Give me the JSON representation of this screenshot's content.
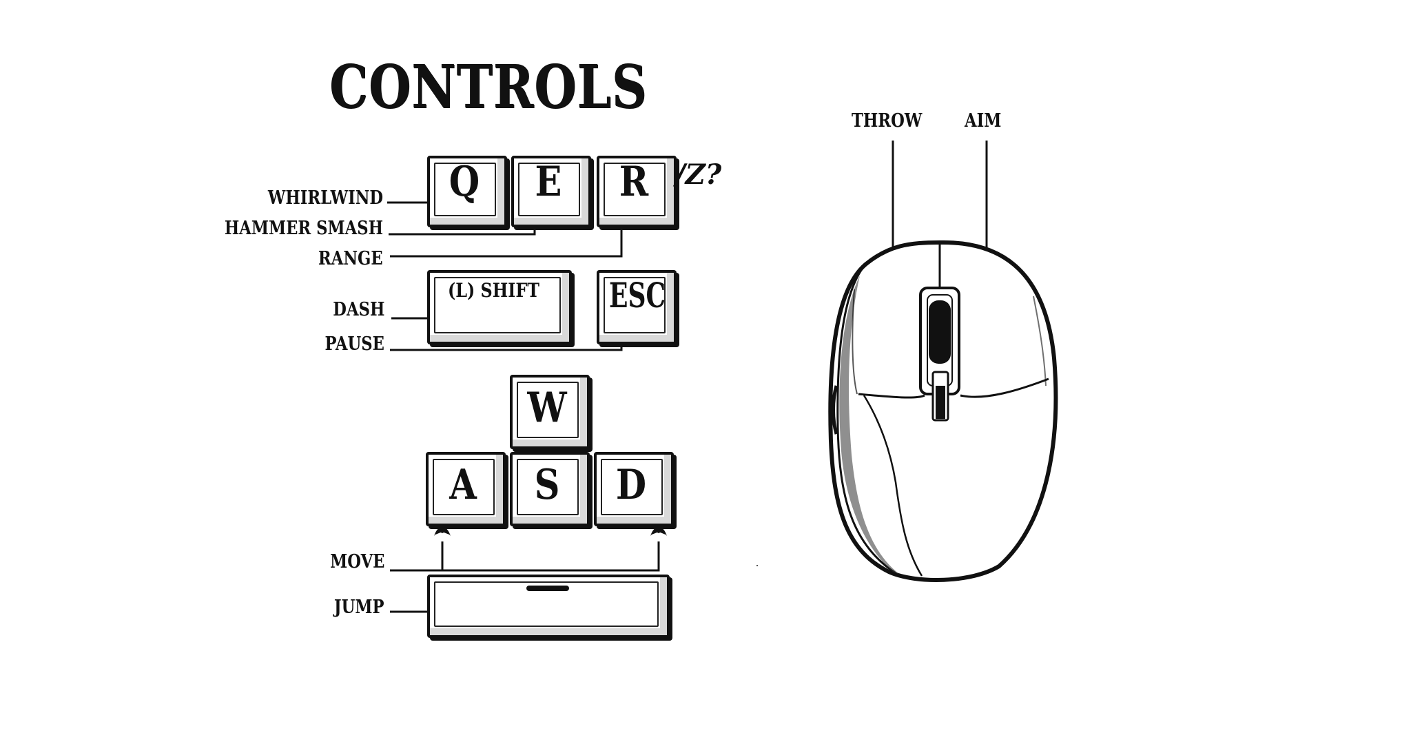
{
  "title": "CONTROLS",
  "keys": {
    "q": "Q",
    "e": "E",
    "r": "R",
    "alt": "/Z?",
    "shift": "(L) SHIFT",
    "esc": "ESC",
    "w": "W",
    "a": "A",
    "s": "S",
    "d": "D"
  },
  "labels": {
    "whirlwind": "WHIRLWIND",
    "hammer_smash": "HAMMER SMASH",
    "range": "RANGE",
    "dash": "DASH",
    "pause": "PAUSE",
    "move": "MOVE",
    "jump": "JUMP"
  },
  "mouse": {
    "left_label": "THROW",
    "right_label": "AIM"
  },
  "colors": {
    "ink": "#111111",
    "background": "#ffffff",
    "key_shade": "#d9d9d9"
  },
  "icons": {
    "pointer": "fleur-de-lis-arrow-icon"
  }
}
